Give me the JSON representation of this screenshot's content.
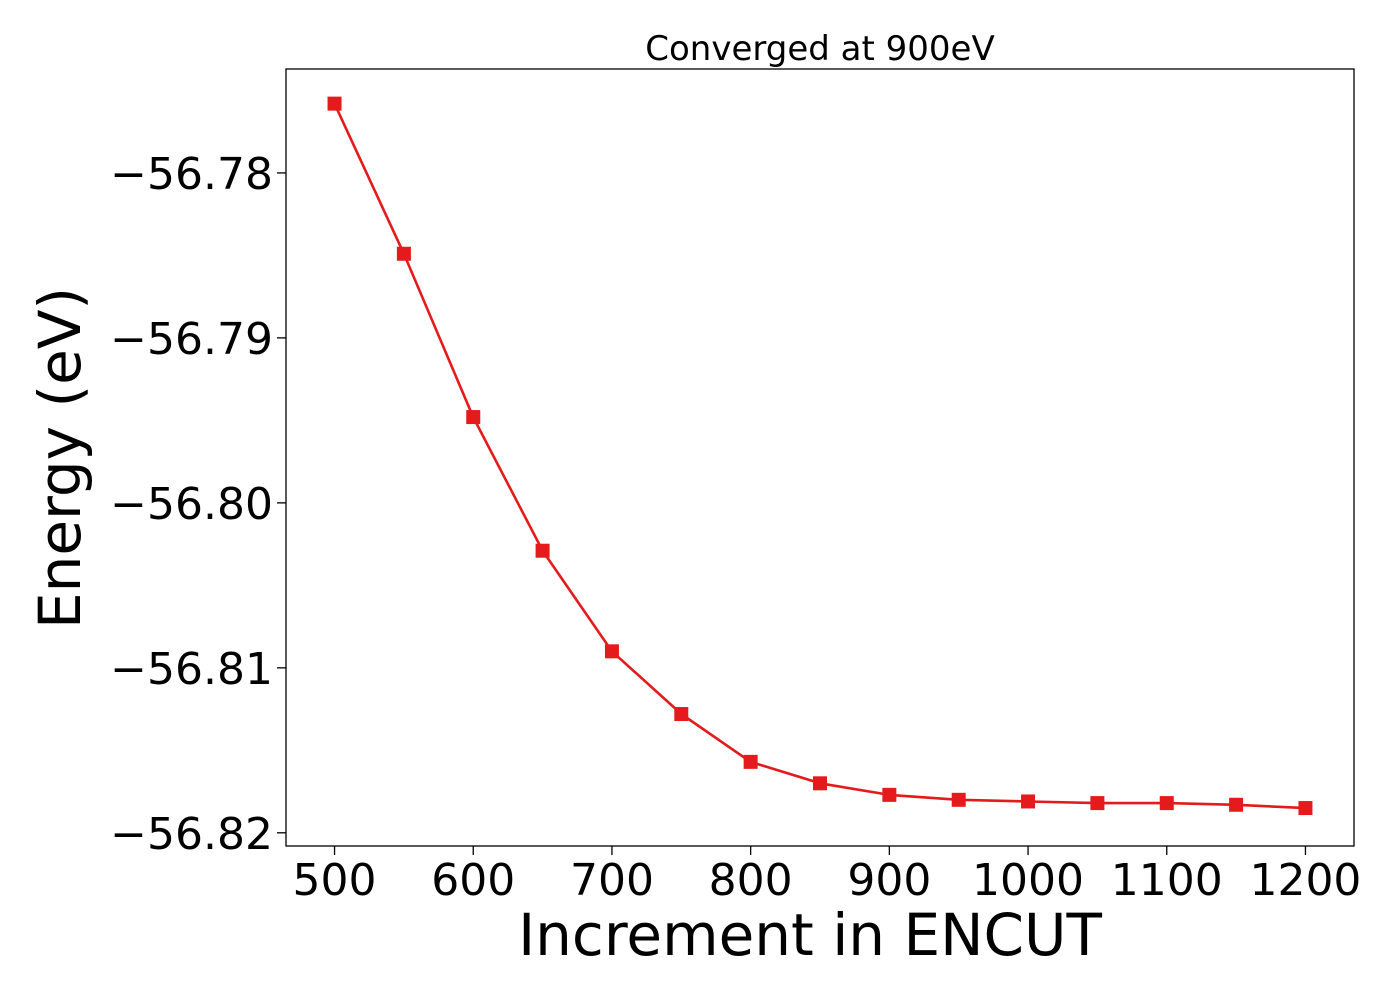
{
  "chart_data": {
    "type": "line",
    "title": "Converged at 900eV",
    "xlabel": "Increment in ENCUT",
    "ylabel": "Energy (eV)",
    "x": [
      500,
      550,
      600,
      650,
      700,
      750,
      800,
      850,
      900,
      950,
      1000,
      1050,
      1100,
      1150,
      1200
    ],
    "series": [
      {
        "values": [
          -56.7758,
          -56.7849,
          -56.7948,
          -56.8029,
          -56.809,
          -56.8128,
          -56.8157,
          -56.817,
          -56.8177,
          -56.818,
          -56.8181,
          -56.8182,
          -56.8182,
          -56.8183,
          -56.8185
        ],
        "color": "#e41a1c",
        "marker": "square"
      }
    ],
    "xticks": [
      500,
      600,
      700,
      800,
      900,
      1000,
      1100,
      1200
    ],
    "yticks": [
      -56.78,
      -56.79,
      -56.8,
      -56.81,
      -56.82
    ],
    "xtick_labels": [
      "500",
      "600",
      "700",
      "800",
      "900",
      "1000",
      "1100",
      "1200"
    ],
    "ytick_labels": [
      "−56.78",
      "−56.79",
      "−56.80",
      "−56.81",
      "−56.82"
    ],
    "xlim": [
      465,
      1235
    ],
    "ylim": [
      -56.8208,
      -56.7737
    ],
    "grid": false,
    "legend": "none"
  }
}
